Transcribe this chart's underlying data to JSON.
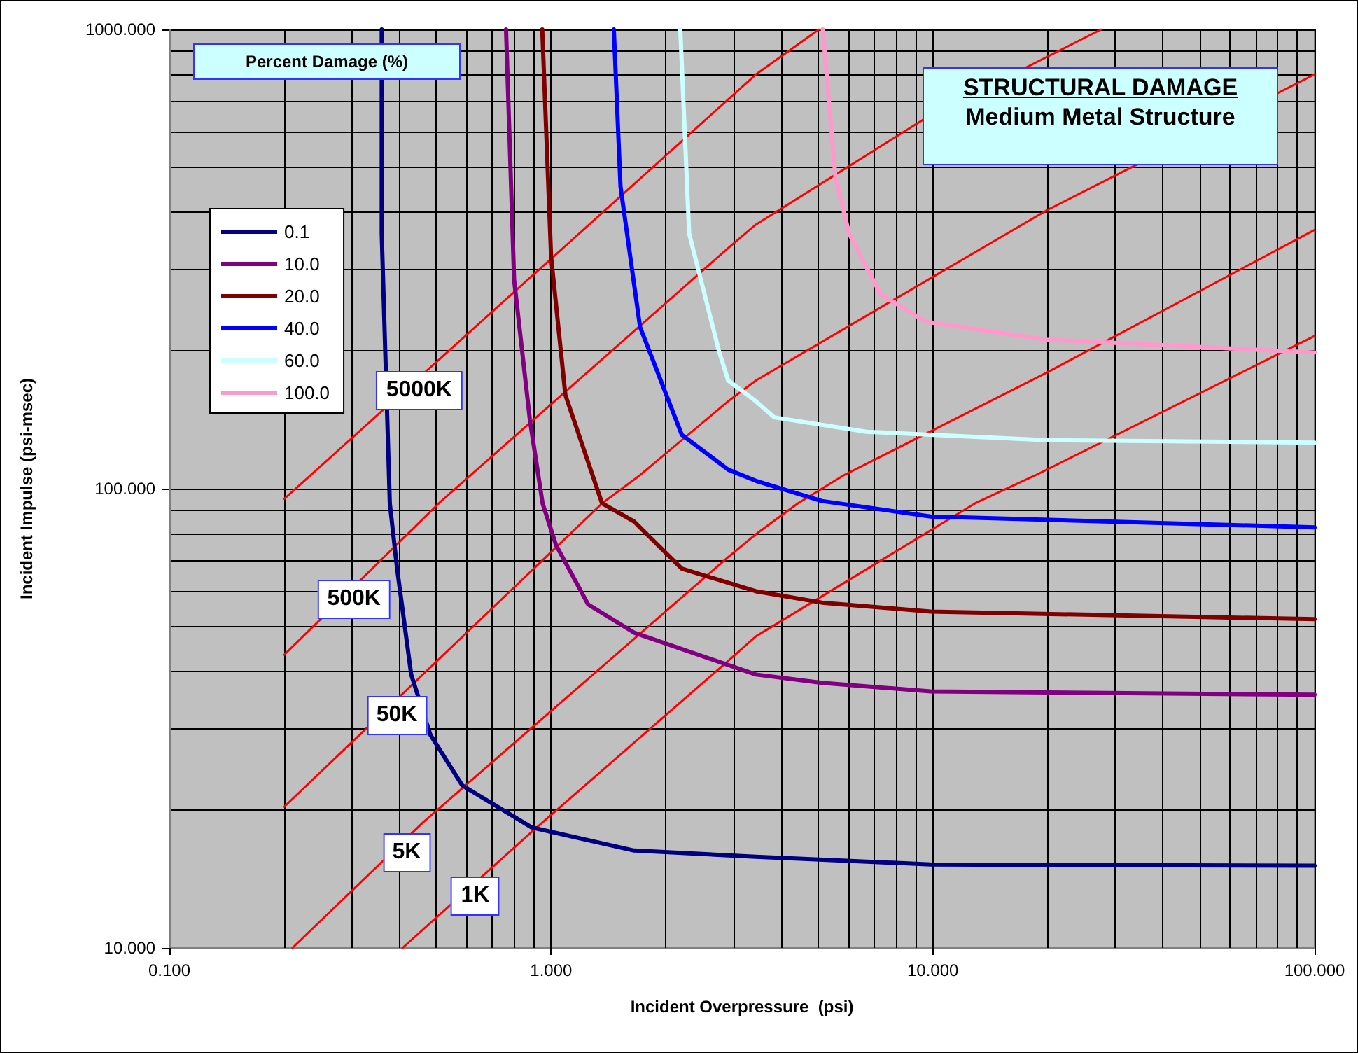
{
  "chart_data": {
    "type": "line",
    "title": "STRUCTURAL DAMAGE",
    "subtitle": "Medium Metal Structure",
    "xlabel": "Incident Overpressure  (psi)",
    "ylabel": "Incident Impulse (psi-msec)",
    "legend_title": "Percent Damage (%)",
    "log": "xy",
    "grid": true,
    "legend": "top left",
    "marker": "none",
    "xlim": [
      0.1,
      100
    ],
    "ylim": [
      10,
      1000
    ],
    "xticks": [
      {
        "value": 0.1,
        "label": "0.100"
      },
      {
        "value": 1,
        "label": "1.000"
      },
      {
        "value": 10,
        "label": "10.000"
      },
      {
        "value": 100,
        "label": "100.000"
      }
    ],
    "yticks": [
      {
        "value": 10,
        "label": "10.000"
      },
      {
        "value": 100,
        "label": "100.000"
      },
      {
        "value": 1000,
        "label": "1000.000"
      }
    ],
    "series": [
      {
        "name": "0.1",
        "color": "#000080",
        "x": [
          0.36,
          0.36,
          0.378,
          0.395,
          0.43,
          0.483,
          0.585,
          0.89,
          1.65,
          3.44,
          9.87,
          100
        ],
        "values": [
          1000,
          359,
          92.9,
          67,
          39.4,
          29.1,
          22.6,
          18.3,
          16.3,
          15.8,
          15.2,
          15.1
        ]
      },
      {
        "name": "10.0",
        "color": "#800080",
        "x": [
          0.762,
          0.8,
          0.88,
          0.95,
          1.03,
          1.25,
          1.65,
          3.44,
          5.12,
          9.87,
          100
        ],
        "values": [
          1000,
          285,
          141,
          92.9,
          75.4,
          56,
          48.6,
          39.4,
          37.8,
          36.2,
          35.6
        ]
      },
      {
        "name": "20.0",
        "color": "#800000",
        "x": [
          0.948,
          1.0,
          1.09,
          1.36,
          1.65,
          2.2,
          3.44,
          5.12,
          9.87,
          100
        ],
        "values": [
          1000,
          320,
          160,
          92.9,
          84.8,
          67,
          59.8,
          56.5,
          54,
          52
        ]
      },
      {
        "name": "40.0",
        "color": "#0000ff",
        "x": [
          1.46,
          1.52,
          1.71,
          2.2,
          2.91,
          3.44,
          5.12,
          9.87,
          100
        ],
        "values": [
          1000,
          455,
          225,
          131,
          110,
          104,
          94,
          87,
          82.4
        ]
      },
      {
        "name": "60.0",
        "color": "#ccffff",
        "x": [
          2.18,
          2.3,
          2.75,
          2.91,
          3.44,
          3.84,
          6.7,
          19.9,
          100
        ],
        "values": [
          1000,
          359,
          200,
          172,
          155,
          143,
          133,
          127.5,
          126
        ]
      },
      {
        "name": "100.0",
        "color": "#ff99cc",
        "x": [
          5.15,
          5.56,
          6.04,
          7.3,
          9.6,
          19.9,
          100
        ],
        "values": [
          1000,
          475,
          359,
          265,
          231,
          211,
          198
        ]
      },
      {
        "color": "#ff0000",
        "x": [
          0.2,
          3.44,
          5.03
        ],
        "values": [
          95,
          798,
          1000
        ]
      },
      {
        "color": "#ff0000",
        "x": [
          0.2,
          0.508,
          2.91,
          3.44,
          9.46,
          27.6
        ],
        "values": [
          43.5,
          92.9,
          334,
          376,
          637,
          1000
        ]
      },
      {
        "color": "#ff0000",
        "x": [
          0.2,
          1.36,
          1.71,
          2.91,
          3.44,
          19.9,
          100
        ],
        "values": [
          20.3,
          92.9,
          107,
          155,
          172,
          404,
          798
        ]
      },
      {
        "color": "#ff0000",
        "x": [
          0.21,
          0.463,
          2.91,
          3.44,
          4.43,
          5.85,
          19.9,
          100
        ],
        "values": [
          10,
          18.8,
          71,
          79.6,
          92.9,
          107,
          179,
          366
        ]
      },
      {
        "color": "#ff0000",
        "x": [
          0.408,
          0.917,
          2.91,
          3.44,
          12.9,
          18.6,
          100
        ],
        "values": [
          10,
          18.3,
          42.2,
          47.7,
          92.9,
          107,
          215
        ]
      }
    ],
    "annotations": [
      {
        "text": "5000K",
        "x": 0.455,
        "y": 176
      },
      {
        "text": "500K",
        "x": 0.307,
        "y": 62.1
      },
      {
        "text": "50K",
        "x": 0.398,
        "y": 34.6
      },
      {
        "text": "5K",
        "x": 0.422,
        "y": 17.4
      },
      {
        "text": "1K",
        "x": 0.638,
        "y": 14.0
      }
    ]
  }
}
